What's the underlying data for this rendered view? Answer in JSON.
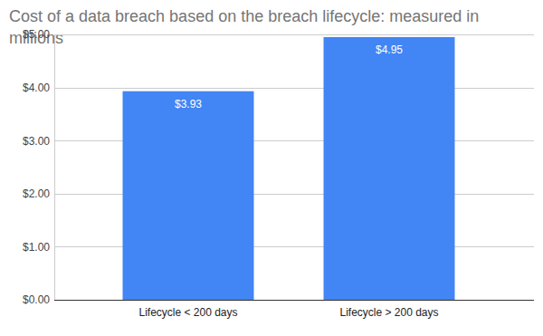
{
  "chart_data": {
    "type": "bar",
    "title": "Cost of a data breach based on the breach lifecycle: measured in millions",
    "categories": [
      "Lifecycle < 200 days",
      "Lifecycle > 200 days"
    ],
    "values": [
      3.93,
      4.95
    ],
    "value_labels": [
      "$3.93",
      "$4.95"
    ],
    "color": "#4285f4",
    "ylim": [
      0,
      5
    ],
    "yticks": [
      {
        "value": 0,
        "label": "$0.00"
      },
      {
        "value": 1,
        "label": "$1.00"
      },
      {
        "value": 2,
        "label": "$2.00"
      },
      {
        "value": 3,
        "label": "$3.00"
      },
      {
        "value": 4,
        "label": "$4.00"
      },
      {
        "value": 5,
        "label": "$5.00"
      }
    ],
    "grid": true,
    "data_labels": true
  }
}
